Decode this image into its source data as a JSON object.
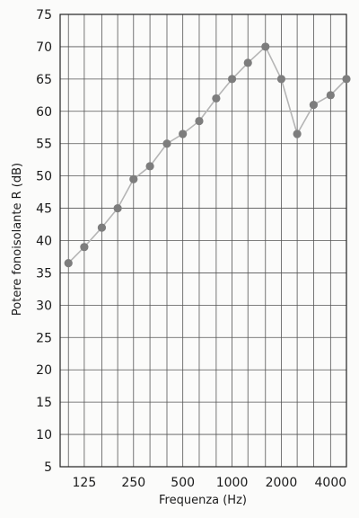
{
  "chart_data": {
    "type": "line",
    "title": "",
    "xlabel": "Frequenza (Hz)",
    "ylabel": "Potere fonoisolante R (dB)",
    "x_scale": "log",
    "x_range_hz": [
      89,
      5000
    ],
    "ylim": [
      5,
      75
    ],
    "y_ticks": [
      5,
      10,
      15,
      20,
      25,
      30,
      35,
      40,
      45,
      50,
      55,
      60,
      65,
      70,
      75
    ],
    "x_tick_labels": [
      "125",
      "250",
      "500",
      "1000",
      "2000",
      "4000"
    ],
    "x_tick_values": [
      125,
      250,
      500,
      1000,
      2000,
      4000
    ],
    "grid": true,
    "colors": {
      "line": "#b5b5b5",
      "marker": "#7d7d7d",
      "grid": "#555555",
      "frame": "#222222"
    },
    "series": [
      {
        "x": [
          100,
          125,
          160,
          200,
          250,
          315,
          400,
          500,
          630,
          800,
          1000,
          1250,
          1600,
          2000,
          2500,
          3150,
          4000,
          5000
        ],
        "y": [
          36.5,
          39,
          42,
          45,
          49.5,
          51.5,
          55,
          56.5,
          58.5,
          62,
          65,
          67.5,
          70,
          65,
          56.5,
          61,
          62.5,
          65
        ]
      }
    ]
  }
}
